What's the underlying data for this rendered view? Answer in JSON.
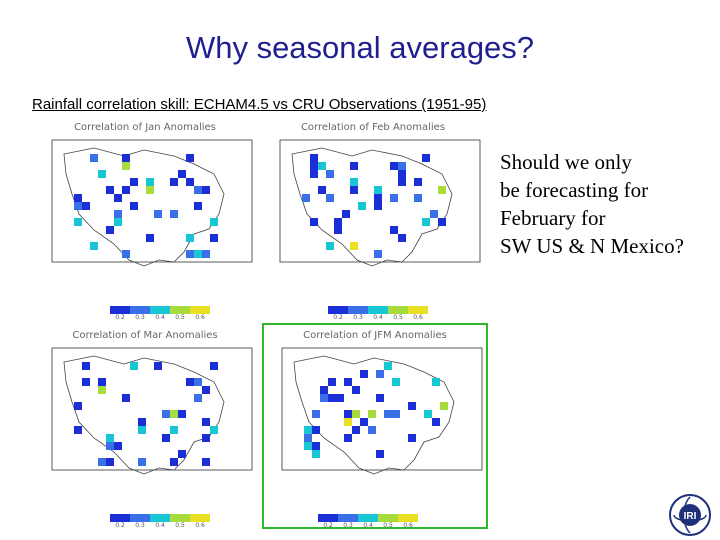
{
  "slide": {
    "title": "Why seasonal averages?",
    "subtitle": "Rainfall correlation skill: ECHAM4.5 vs CRU Observations (1951-95)",
    "side_text_lines": [
      "Should we only",
      "be forecasting for",
      "February for",
      "SW US & N Mexico?"
    ]
  },
  "panels": [
    {
      "title": "Correlation of Jan Anomalies"
    },
    {
      "title": "Correlation of Feb Anomalies"
    },
    {
      "title": "Correlation of Mar Anomalies"
    },
    {
      "title": "Correlation of JFM Anomalies"
    }
  ],
  "colorbar": {
    "ticks": [
      "0.2",
      "0.3",
      "0.4",
      "0.5",
      "0.6"
    ],
    "colors": [
      "#1a2fd6",
      "#3a6fe8",
      "#19c6d4",
      "#a8dc3c",
      "#e8e020"
    ]
  },
  "logo": {
    "text": "IRI",
    "icon": "globe-logo-icon"
  },
  "colors": {
    "title": "#1f1f8f",
    "highlight": "#2db82d"
  }
}
